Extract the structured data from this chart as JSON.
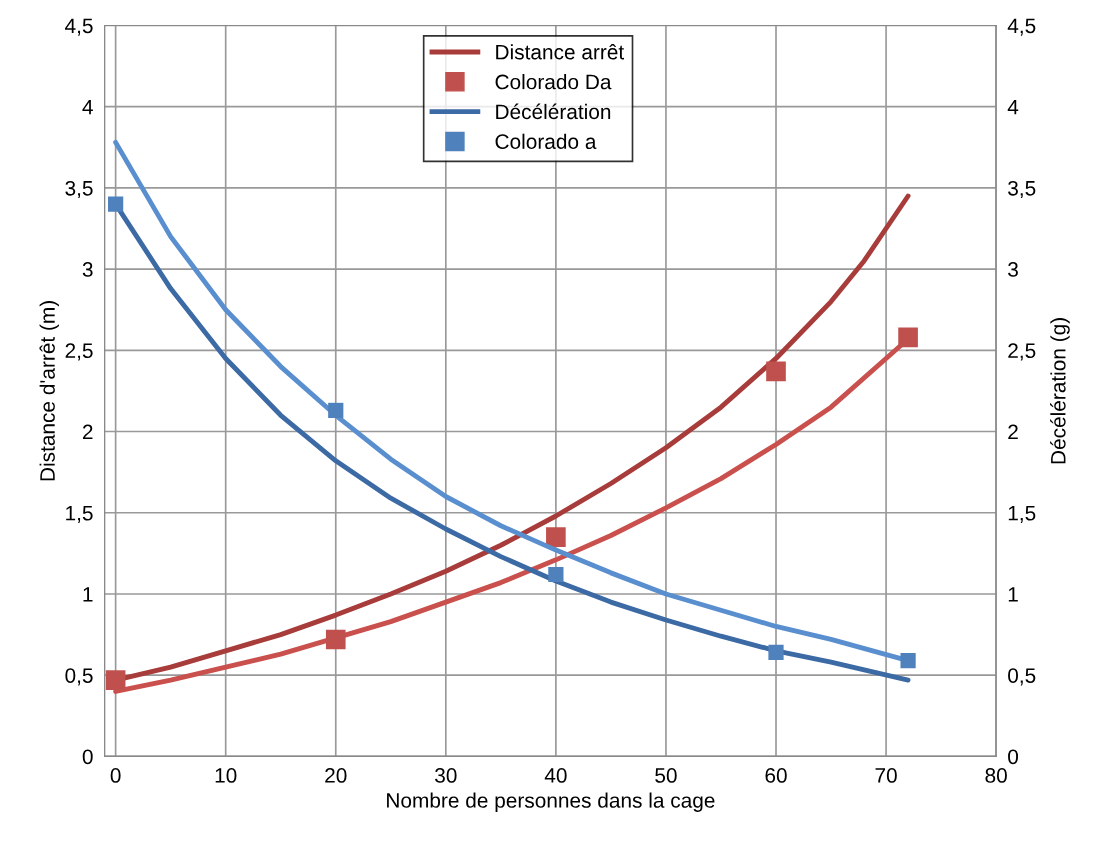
{
  "chart_data": {
    "type": "line",
    "xlabel": "Nombre de personnes dans la cage",
    "ylabel": "Distance d'arrêt (m)",
    "y2label": "Décélération (g)",
    "xlim": [
      -1,
      80
    ],
    "xticks": [
      0,
      10,
      20,
      30,
      40,
      50,
      60,
      70,
      80
    ],
    "ylim": [
      0,
      4.5
    ],
    "yticks": [
      0,
      {
        "value": 0.5,
        "label": "0,5"
      },
      1,
      {
        "value": 1.5,
        "label": "1,5"
      },
      2,
      {
        "value": 2.5,
        "label": "2,5"
      },
      3,
      {
        "value": 3.5,
        "label": "3,5"
      },
      4,
      {
        "value": 4.5,
        "label": "4,5"
      }
    ],
    "y2lim": [
      0,
      4.5
    ],
    "y2ticks": [
      0,
      {
        "value": 0.5,
        "label": "0,5"
      },
      1,
      {
        "value": 1.5,
        "label": "1,5"
      },
      2,
      {
        "value": 2.5,
        "label": "2,5"
      },
      3,
      {
        "value": 3.5,
        "label": "3,5"
      },
      4,
      {
        "value": 4.5,
        "label": "4,5"
      }
    ],
    "grid": true,
    "legend": "top",
    "series": [
      {
        "name": "Distance arrêt",
        "color": "#a83c3a",
        "x": [
          0,
          5,
          10,
          15,
          20,
          25,
          30,
          35,
          40,
          45,
          50,
          55,
          60,
          65,
          68,
          72
        ],
        "values": [
          0.47,
          0.55,
          0.65,
          0.75,
          0.87,
          1.0,
          1.14,
          1.3,
          1.48,
          1.68,
          1.9,
          2.15,
          2.45,
          2.8,
          3.05,
          3.45
        ]
      },
      {
        "name": "Colorado Da",
        "type": "scatter",
        "marker": "square",
        "color": "#c0504d",
        "x": [
          0,
          20,
          40,
          60,
          72
        ],
        "values": [
          0.47,
          0.72,
          1.35,
          2.37,
          2.58
        ]
      },
      {
        "color": "#c9504d",
        "x": [
          0,
          5,
          10,
          15,
          20,
          25,
          30,
          35,
          40,
          45,
          50,
          55,
          60,
          65,
          72
        ],
        "values": [
          0.4,
          0.47,
          0.55,
          0.63,
          0.73,
          0.83,
          0.95,
          1.07,
          1.21,
          1.36,
          1.53,
          1.71,
          1.92,
          2.15,
          2.57
        ]
      },
      {
        "name": "Décélération",
        "axis": "y2",
        "color": "#3c6aa5",
        "x": [
          0,
          5,
          10,
          15,
          20,
          25,
          30,
          35,
          40,
          45,
          50,
          55,
          60,
          65,
          72
        ],
        "values": [
          3.4,
          2.88,
          2.45,
          2.1,
          1.82,
          1.59,
          1.4,
          1.23,
          1.08,
          0.95,
          0.84,
          0.74,
          0.65,
          0.58,
          0.47
        ]
      },
      {
        "name": "Colorado a",
        "type": "scatter",
        "marker": "square",
        "axis": "y2",
        "color": "#4f81bd",
        "x": [
          0,
          20,
          40,
          60,
          72
        ],
        "values": [
          3.4,
          2.13,
          1.12,
          0.64,
          0.59
        ]
      },
      {
        "axis": "y2",
        "color": "#5a8fcf",
        "x": [
          0,
          5,
          10,
          15,
          20,
          25,
          30,
          35,
          40,
          45,
          50,
          55,
          60,
          65,
          72
        ],
        "values": [
          3.78,
          3.2,
          2.75,
          2.4,
          2.1,
          1.83,
          1.6,
          1.42,
          1.27,
          1.13,
          1.0,
          0.9,
          0.8,
          0.72,
          0.59
        ]
      }
    ]
  }
}
